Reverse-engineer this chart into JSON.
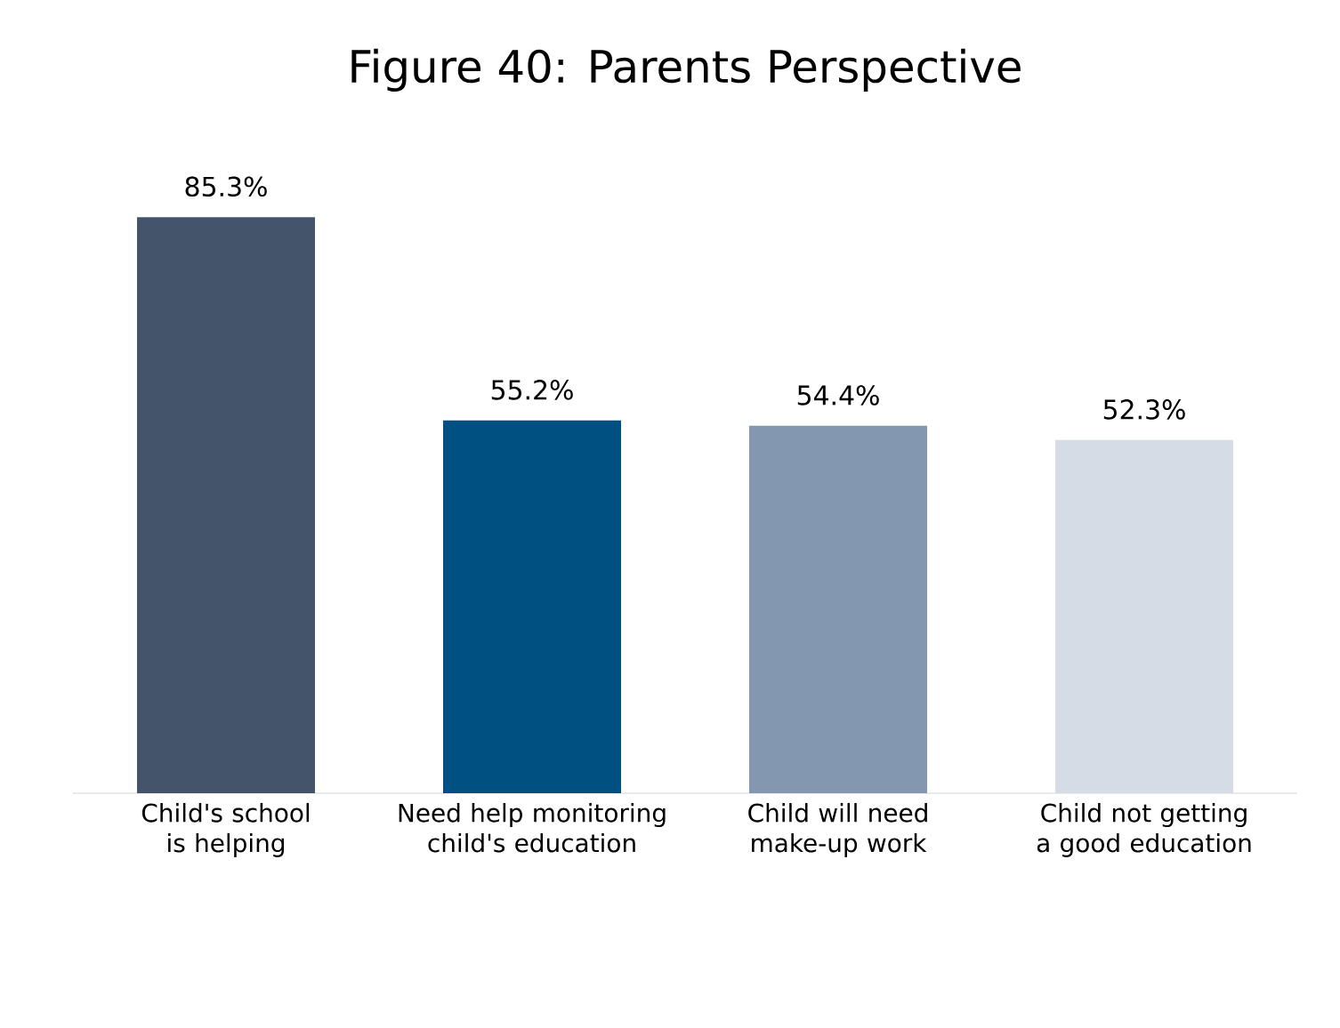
{
  "chart_data": {
    "type": "bar",
    "title": "Figure 40: Parents Perspective",
    "categories": [
      "Child's school is helping",
      "Need help monitoring child's education",
      "Child will need make-up work",
      "Child not getting a good education"
    ],
    "values": [
      85.3,
      55.2,
      54.4,
      52.3
    ],
    "value_labels": [
      "85.3%",
      "55.2%",
      "54.4%",
      "52.3%"
    ],
    "colors": [
      "#44546a",
      "#005182",
      "#8497b0",
      "#d6dce5"
    ]
  }
}
